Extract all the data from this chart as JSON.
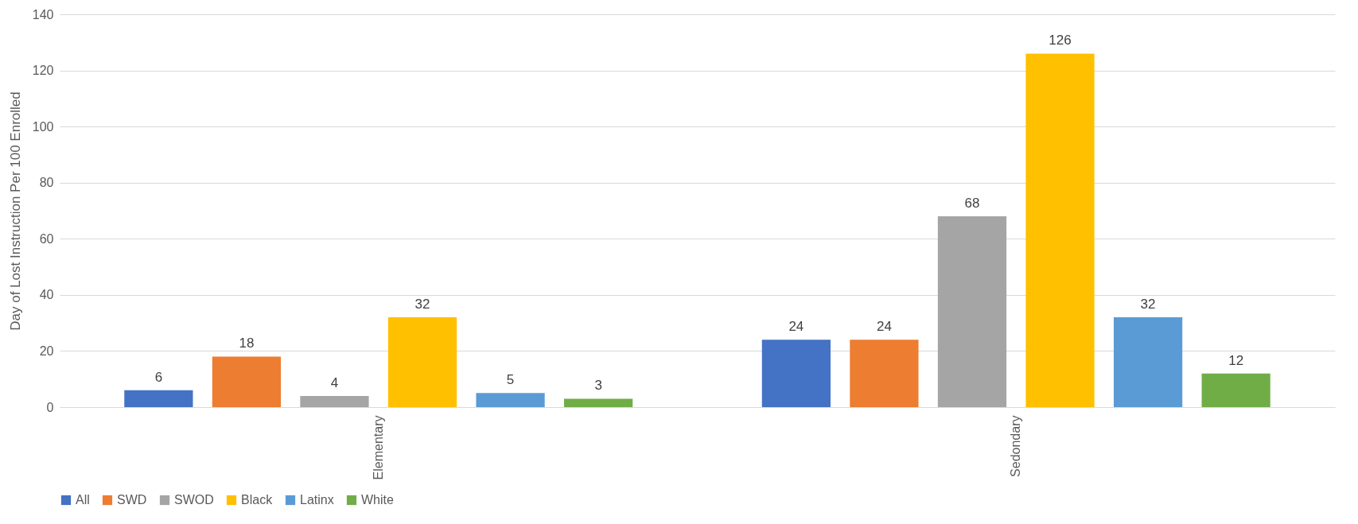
{
  "chart_data": {
    "type": "bar",
    "ylabel": "Day of Lost Instruction Per 100 Enrolled",
    "categories": [
      "Elementary",
      "Sedondary"
    ],
    "series": [
      {
        "name": "All",
        "color": "#4472c4",
        "values": [
          6,
          24
        ]
      },
      {
        "name": "SWD",
        "color": "#ed7d31",
        "values": [
          18,
          24
        ]
      },
      {
        "name": "SWOD",
        "color": "#a5a5a5",
        "values": [
          4,
          68
        ]
      },
      {
        "name": "Black",
        "color": "#ffc000",
        "values": [
          32,
          126
        ]
      },
      {
        "name": "Latinx",
        "color": "#5b9bd5",
        "values": [
          5,
          32
        ]
      },
      {
        "name": "White",
        "color": "#70ad47",
        "values": [
          3,
          12
        ]
      }
    ],
    "ylim": [
      0,
      140
    ],
    "yticks": [
      0,
      20,
      40,
      60,
      80,
      100,
      120,
      140
    ],
    "grid": "y",
    "legend": "bottom",
    "data_labels": true
  }
}
